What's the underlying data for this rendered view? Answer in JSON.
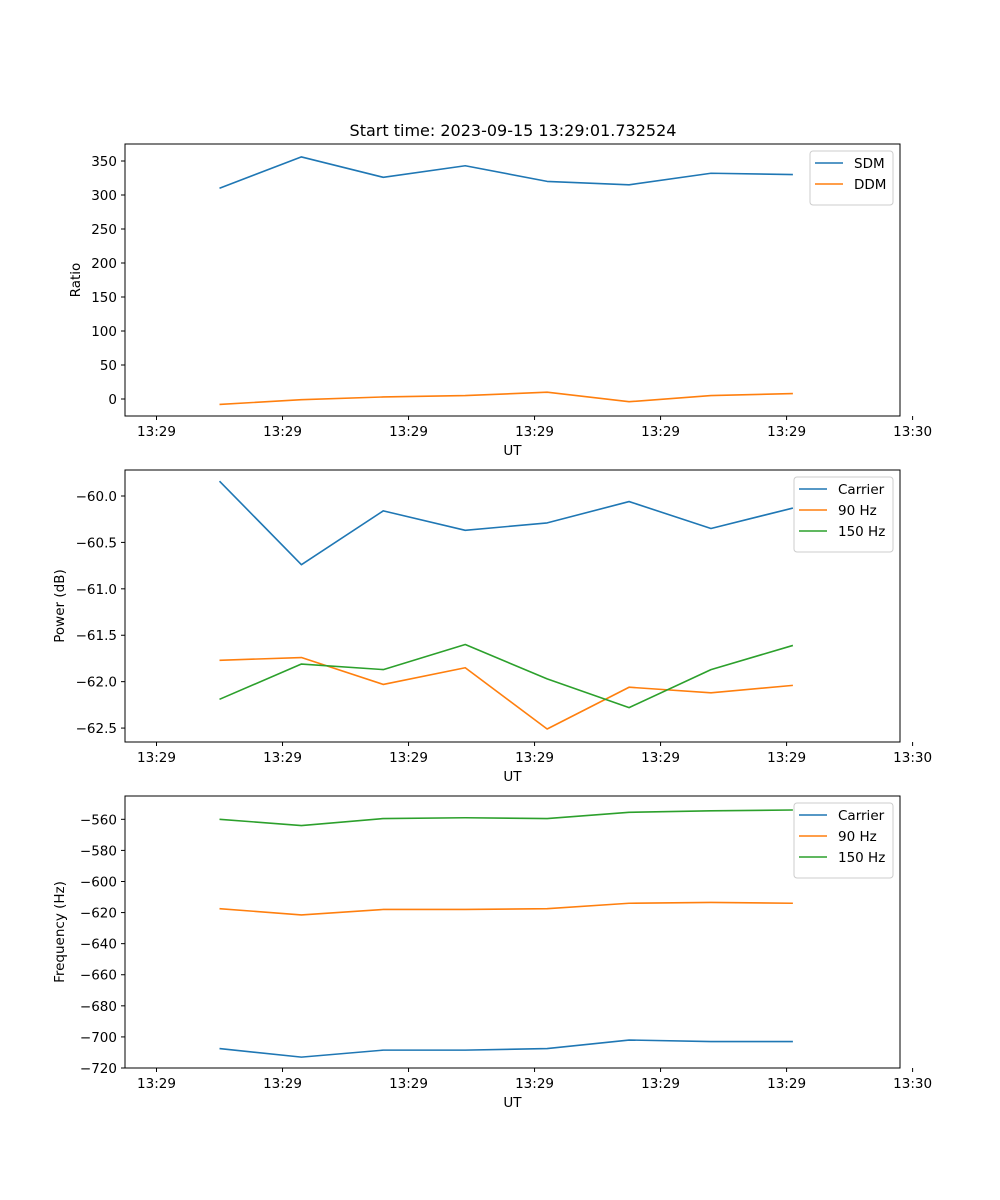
{
  "figure_title": "Start time: 2023-09-15 13:29:01.732524",
  "chart_data": [
    {
      "type": "line",
      "title": "Start time: 2023-09-15 13:29:01.732524",
      "xlabel": "UT",
      "ylabel": "Ratio",
      "xlim": [
        -0.75,
        5.4
      ],
      "ylim": [
        -25,
        375
      ],
      "x_ticks": [
        -0.5,
        0.5,
        1.5,
        2.5,
        3.5,
        4.5,
        5.5
      ],
      "x_tick_labels": [
        "13:29",
        "13:29",
        "13:29",
        "13:29",
        "13:29",
        "13:29",
        "13:30"
      ],
      "y_ticks": [
        0,
        50,
        100,
        150,
        200,
        250,
        300,
        350
      ],
      "y_tick_labels": [
        "0",
        "50",
        "100",
        "150",
        "200",
        "250",
        "300",
        "350"
      ],
      "legend_position": "top-right",
      "x": [
        0,
        0.65,
        1.3,
        1.95,
        2.6,
        3.25,
        3.9,
        4.55
      ],
      "series": [
        {
          "name": "SDM",
          "color": "#1f77b4",
          "values": [
            310,
            356,
            326,
            343,
            320,
            315,
            332,
            330
          ]
        },
        {
          "name": "DDM",
          "color": "#ff7f0e",
          "values": [
            -8,
            -1,
            3,
            5,
            10,
            -4,
            5,
            8
          ]
        }
      ]
    },
    {
      "type": "line",
      "title": "",
      "xlabel": "UT",
      "ylabel": "Power (dB)",
      "xlim": [
        -0.75,
        5.4
      ],
      "ylim": [
        -62.65,
        -59.72
      ],
      "x_ticks": [
        -0.5,
        0.5,
        1.5,
        2.5,
        3.5,
        4.5,
        5.5
      ],
      "x_tick_labels": [
        "13:29",
        "13:29",
        "13:29",
        "13:29",
        "13:29",
        "13:29",
        "13:30"
      ],
      "y_ticks": [
        -60.0,
        -60.5,
        -61.0,
        -61.5,
        -62.0,
        -62.5
      ],
      "y_tick_labels": [
        "−60.0",
        "−60.5",
        "−61.0",
        "−61.5",
        "−62.0",
        "−62.5"
      ],
      "legend_position": "top-right",
      "x": [
        0,
        0.65,
        1.3,
        1.95,
        2.6,
        3.25,
        3.9,
        4.55
      ],
      "series": [
        {
          "name": "Carrier",
          "color": "#1f77b4",
          "values": [
            -59.84,
            -60.74,
            -60.16,
            -60.37,
            -60.29,
            -60.06,
            -60.35,
            -60.13
          ]
        },
        {
          "name": "90 Hz",
          "color": "#ff7f0e",
          "values": [
            -61.77,
            -61.74,
            -62.03,
            -61.85,
            -62.51,
            -62.06,
            -62.12,
            -62.04
          ]
        },
        {
          "name": "150 Hz",
          "color": "#2ca02c",
          "values": [
            -62.19,
            -61.81,
            -61.87,
            -61.6,
            -61.97,
            -62.28,
            -61.87,
            -61.61
          ]
        }
      ]
    },
    {
      "type": "line",
      "title": "",
      "xlabel": "UT",
      "ylabel": "Frequency (Hz)",
      "xlim": [
        -0.75,
        5.4
      ],
      "ylim": [
        -720,
        -545
      ],
      "x_ticks": [
        -0.5,
        0.5,
        1.5,
        2.5,
        3.5,
        4.5,
        5.5
      ],
      "x_tick_labels": [
        "13:29",
        "13:29",
        "13:29",
        "13:29",
        "13:29",
        "13:29",
        "13:30"
      ],
      "y_ticks": [
        -560,
        -580,
        -600,
        -620,
        -640,
        -660,
        -680,
        -700,
        -720
      ],
      "y_tick_labels": [
        "−560",
        "−580",
        "−600",
        "−620",
        "−640",
        "−660",
        "−680",
        "−700",
        "−720"
      ],
      "legend_position": "top-right",
      "x": [
        0,
        0.65,
        1.3,
        1.95,
        2.6,
        3.25,
        3.9,
        4.55
      ],
      "series": [
        {
          "name": "Carrier",
          "color": "#1f77b4",
          "values": [
            -707.5,
            -713,
            -708.5,
            -708.5,
            -707.5,
            -702,
            -703,
            -703
          ]
        },
        {
          "name": "90 Hz",
          "color": "#ff7f0e",
          "values": [
            -617.5,
            -621.5,
            -618,
            -618,
            -617.5,
            -614,
            -613.5,
            -614
          ]
        },
        {
          "name": "150 Hz",
          "color": "#2ca02c",
          "values": [
            -560,
            -564,
            -559.5,
            -559,
            -559.5,
            -555.5,
            -554.5,
            -554
          ]
        }
      ]
    }
  ]
}
